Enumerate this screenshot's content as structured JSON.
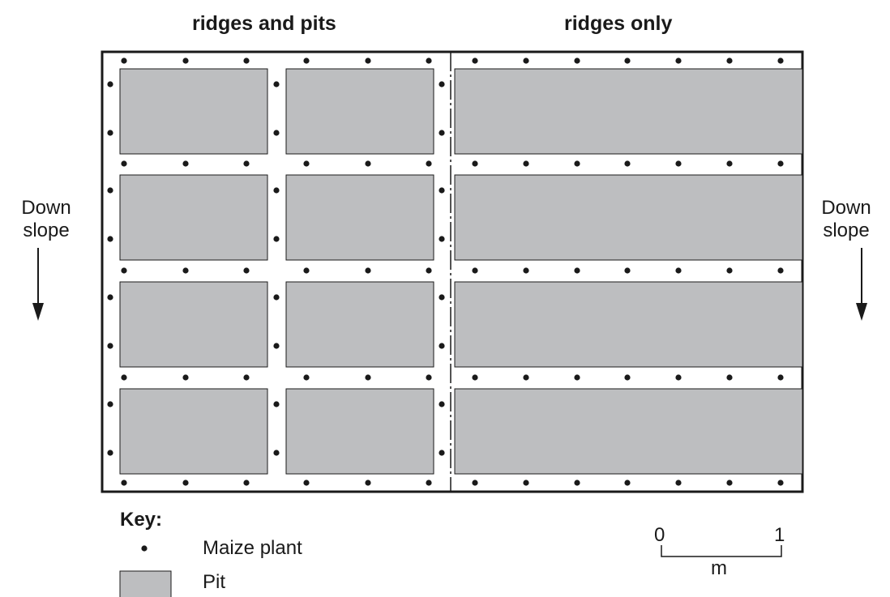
{
  "headings": {
    "left": "ridges and pits",
    "right": "ridges only"
  },
  "slope": {
    "left_line1": "Down",
    "left_line2": "slope",
    "right_line1": "Down",
    "right_line2": "slope"
  },
  "key": {
    "title": "Key:",
    "maize_label": "Maize plant",
    "pit_label": "Pit"
  },
  "scale": {
    "start": "0",
    "end": "1",
    "unit": "m"
  },
  "colors": {
    "pit_fill": "#bdbec0",
    "line": "#1a1a1a",
    "plant": "#1a1a1a"
  }
}
